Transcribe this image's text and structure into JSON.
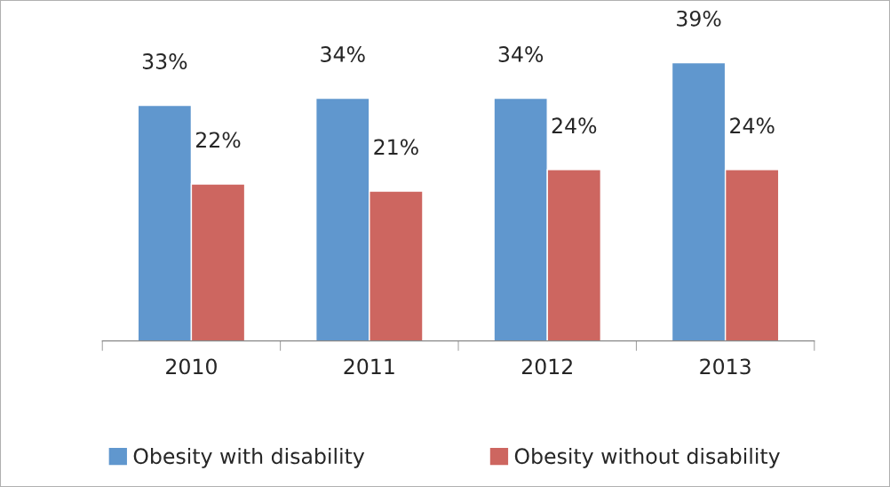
{
  "chart_data": {
    "type": "bar",
    "categories": [
      "2010",
      "2011",
      "2012",
      "2013"
    ],
    "series": [
      {
        "name": "Obesity with disability",
        "color": "#6097ce",
        "values": [
          33,
          34,
          34,
          39
        ],
        "value_labels": [
          "33%",
          "34%",
          "34%",
          "39%"
        ]
      },
      {
        "name": "Obesity without disability",
        "color": "#cd6660",
        "values": [
          22,
          21,
          24,
          24
        ],
        "value_labels": [
          "22%",
          "21%",
          "24%",
          "24%"
        ]
      }
    ],
    "legend": "bottom",
    "grid": false,
    "tick_labels": "x"
  }
}
